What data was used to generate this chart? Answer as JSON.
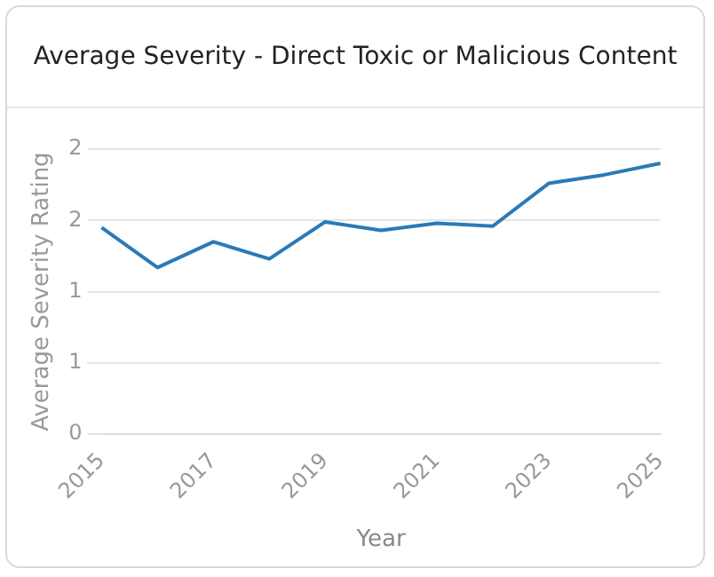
{
  "chart_data": {
    "type": "line",
    "title": "Average Severity - Direct Toxic or Malicious Content",
    "xlabel": "Year",
    "ylabel": "Average Severity Rating",
    "categories": [
      "2015",
      null,
      "2017",
      null,
      "2019",
      null,
      "2021",
      null,
      "2023",
      null,
      "2025"
    ],
    "series": [
      {
        "color": "#2a7ab8",
        "values": [
          1.45,
          1.17,
          1.35,
          1.23,
          1.49,
          1.43,
          1.48,
          1.46,
          1.76,
          1.82,
          1.9
        ]
      }
    ],
    "ylim": [
      0,
      2
    ],
    "yticks": [
      {
        "value": 0,
        "label": "0"
      },
      {
        "value": 0.5,
        "label": "1"
      },
      {
        "value": 1,
        "label": "1"
      },
      {
        "value": 1.5,
        "label": "2"
      },
      {
        "value": 2,
        "label": "2"
      }
    ],
    "grid": "y",
    "legend": false,
    "marker": "none",
    "line_style": "solid"
  }
}
